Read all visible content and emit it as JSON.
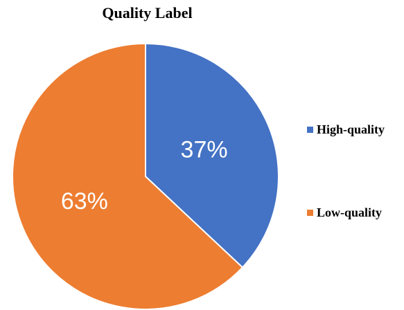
{
  "chart_data": {
    "type": "pie",
    "title": "Quality Label",
    "categories": [
      "High-quality",
      "Low-quality"
    ],
    "values": [
      37,
      63
    ],
    "labels": [
      "37%",
      "63%"
    ],
    "colors": [
      "#4472C4",
      "#ED7D31"
    ],
    "legend_position": "right"
  }
}
